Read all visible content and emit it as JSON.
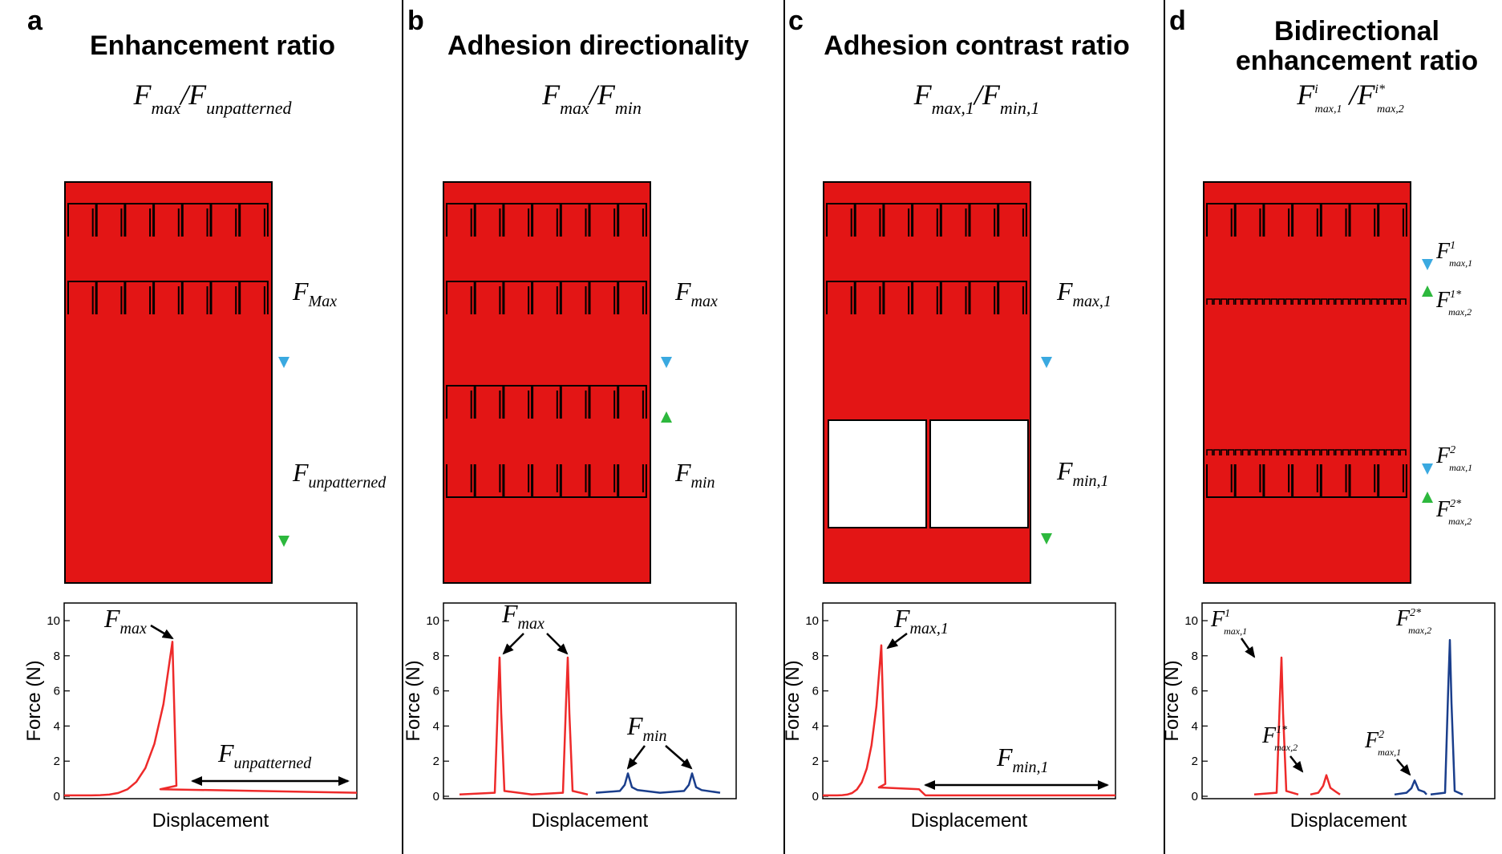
{
  "colors": {
    "specimen": "#e31515",
    "arrow_blue": "#3aa9e0",
    "arrow_green": "#2db83d",
    "curve_red": "#ee2a2a",
    "curve_blue": "#1a3e8c"
  },
  "panels": [
    {
      "label": "a",
      "title_lines": [
        "Enhancement ratio"
      ],
      "formula": "F_max / F_unpatterned",
      "arrows": [
        {
          "direction": "down",
          "color": "blue",
          "label": "F_Max"
        },
        {
          "direction": "down",
          "color": "green",
          "label": "F_unpatterned"
        }
      ],
      "plot_annotations": [
        "F_max",
        "F_unpatterned"
      ]
    },
    {
      "label": "b",
      "title_lines": [
        "Adhesion directionality"
      ],
      "formula": "F_max / F_min",
      "arrows": [
        {
          "direction": "down",
          "color": "blue",
          "label": "F_max"
        },
        {
          "direction": "up",
          "color": "green",
          "label": "F_min"
        }
      ],
      "plot_annotations": [
        "F_max",
        "F_min"
      ]
    },
    {
      "label": "c",
      "title_lines": [
        "Adhesion contrast ratio"
      ],
      "formula": "F_max,1 / F_min,1",
      "arrows": [
        {
          "direction": "down",
          "color": "blue",
          "label": "F_max,1"
        },
        {
          "direction": "down",
          "color": "green",
          "label": "F_min,1"
        }
      ],
      "plot_annotations": [
        "F_max,1",
        "F_min,1"
      ]
    },
    {
      "label": "d",
      "title_lines": [
        "Bidirectional",
        "enhancement ratio"
      ],
      "formula": "F^i_max,1 / F^i*_max,2",
      "arrows": [
        {
          "direction": "down",
          "color": "blue",
          "label": "F^1_max,1"
        },
        {
          "direction": "up",
          "color": "green",
          "label": "F^1*_max,2"
        },
        {
          "direction": "down",
          "color": "blue",
          "label": "F^2_max,1"
        },
        {
          "direction": "up",
          "color": "green",
          "label": "F^2*_max,2"
        }
      ],
      "plot_annotations": [
        "F^1_max,1",
        "F^1*_max,2",
        "F^2_max,1",
        "F^2*_max,2"
      ]
    }
  ],
  "chart_data": [
    {
      "panel": "a",
      "type": "line",
      "xlabel": "Displacement",
      "ylabel": "Force (N)",
      "ylim": [
        0,
        10
      ],
      "yticks": [
        0,
        2,
        4,
        6,
        8,
        10
      ],
      "series": [
        {
          "color": "red",
          "peaks": [
            8.8
          ],
          "baseline": 0.2
        }
      ]
    },
    {
      "panel": "b",
      "type": "line",
      "xlabel": "Displacement",
      "ylabel": "Force (N)",
      "ylim": [
        0,
        10
      ],
      "yticks": [
        0,
        2,
        4,
        6,
        8,
        10
      ],
      "series": [
        {
          "color": "red",
          "peaks": [
            7.9,
            7.9
          ],
          "baseline": 0.1
        },
        {
          "color": "blue",
          "peaks": [
            1.3,
            1.3
          ],
          "baseline": 0.2
        }
      ]
    },
    {
      "panel": "c",
      "type": "line",
      "xlabel": "Displacement",
      "ylabel": "Force (N)",
      "ylim": [
        0,
        10
      ],
      "yticks": [
        0,
        2,
        4,
        6,
        8,
        10
      ],
      "series": [
        {
          "color": "red",
          "peaks": [
            8.6
          ],
          "baseline": 0.05
        }
      ]
    },
    {
      "panel": "d",
      "type": "line",
      "xlabel": "Displacement",
      "ylabel": "Force (N)",
      "ylim": [
        0,
        10
      ],
      "yticks": [
        0,
        2,
        4,
        6,
        8,
        10
      ],
      "series": [
        {
          "color": "red",
          "peaks": [
            7.9
          ],
          "baseline": 0.0
        },
        {
          "color": "red",
          "peaks": [
            1.2
          ],
          "baseline": 0.1
        },
        {
          "color": "blue",
          "peaks": [
            0.9
          ],
          "baseline": 0.1
        },
        {
          "color": "blue",
          "peaks": [
            8.9
          ],
          "baseline": 0.1
        }
      ]
    }
  ]
}
